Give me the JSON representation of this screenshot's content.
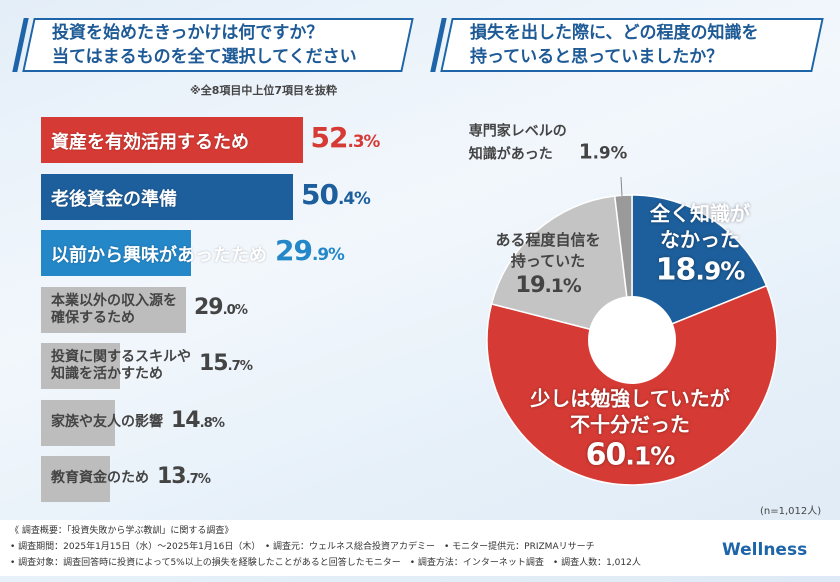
{
  "chart_data": [
    {
      "type": "bar",
      "orientation": "horizontal",
      "title": "投資を始めたきっかけは何ですか？\n当てはまるものを全て選択してください",
      "title_lines": [
        "投資を始めたきっかけは何ですか？",
        "当てはまるものを全て選択してください"
      ],
      "note": "※全8項目中上位7項目を抜粋",
      "categories": [
        "資産を有効活用するため",
        "老後資金の準備",
        "以前から興味があったため",
        "本業以外の収入源を確保するため",
        "投資に関するスキルや知識を活かすため",
        "家族や友人の影響",
        "教育資金のため"
      ],
      "label_lines": [
        [
          "資産を有効活用するため"
        ],
        [
          "老後資金の準備"
        ],
        [
          "以前から興味があったため"
        ],
        [
          "本業以外の収入源を",
          "確保するため"
        ],
        [
          "投資に関するスキルや",
          "知識を活かすため"
        ],
        [
          "家族や友人の影響"
        ],
        [
          "教育資金のため"
        ]
      ],
      "values": [
        52.3,
        50.4,
        29.9,
        29.0,
        15.7,
        14.8,
        13.7
      ],
      "colors": [
        "#d63a34",
        "#1d5f9c",
        "#2487c8",
        "#bdbdbd",
        "#bdbdbd",
        "#bdbdbd",
        "#bdbdbd"
      ],
      "pct_colors": [
        "#d63a34",
        "#1d5f9c",
        "#2487c8",
        "#444444",
        "#444444",
        "#444444",
        "#444444"
      ],
      "unit": "%"
    },
    {
      "type": "pie",
      "donut": true,
      "title_lines": [
        "損失を出した際に、どの程度の知識を",
        "持っていると思っていましたか？"
      ],
      "slices": [
        {
          "label": "全く知識がなかった",
          "lines": [
            "全く知識が",
            "なかった"
          ],
          "value": 18.9,
          "color": "#1d5f9c"
        },
        {
          "label": "少しは勉強していたが不十分だった",
          "lines": [
            "少しは勉強していたが",
            "不十分だった"
          ],
          "value": 60.1,
          "color": "#d63a34"
        },
        {
          "label": "ある程度自信を持っていた",
          "lines": [
            "ある程度自信を",
            "持っていた"
          ],
          "value": 19.1,
          "color": "#c4c4c4"
        },
        {
          "label": "専門家レベルの知識があった",
          "lines": [
            "専門家レベルの",
            "知識があった"
          ],
          "value": 1.9,
          "color": "#9a9a9a"
        }
      ],
      "n_label": "(n=1,012人)"
    }
  ],
  "footer": {
    "lines": [
      "《 調査概要：「投資失敗から学ぶ教訓」に関する調査》",
      "• 調査期間：2025年1月15日（水）～2025年1月16日（木）　• 調査元：ウェルネス総合投資アカデミー　• モニター提供元：PRIZMAリサーチ",
      "• 調査対象：調査回答時に投資によって5%以上の損失を経験したことがあると回答したモニター　• 調査方法：インターネット調査　• 調査人数：1,012人"
    ],
    "logo": "Wellness"
  }
}
